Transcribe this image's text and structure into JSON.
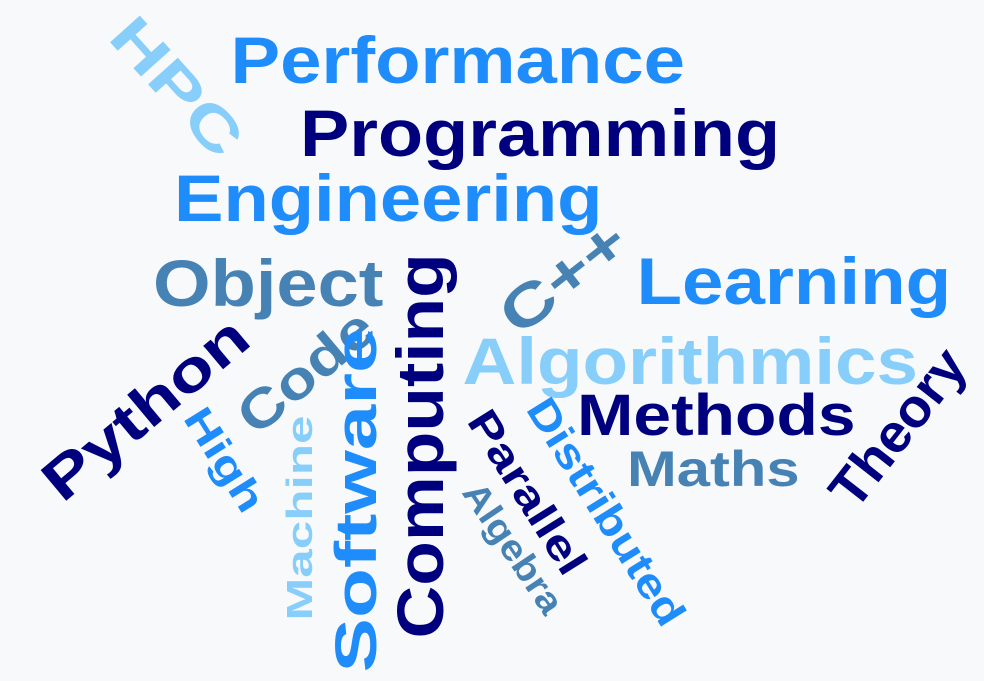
{
  "colors": {
    "navy": "#00007f",
    "dodger_blue": "#1e8cfa",
    "steel_blue": "#4682b4",
    "light_sky_blue": "#87cefa",
    "background": "#f7f9fb"
  },
  "words": [
    {
      "text": "Performance",
      "color": "dodger_blue"
    },
    {
      "text": "HPC",
      "color": "light_sky_blue"
    },
    {
      "text": "Programming",
      "color": "navy"
    },
    {
      "text": "Engineering",
      "color": "dodger_blue"
    },
    {
      "text": "Object",
      "color": "steel_blue"
    },
    {
      "text": "C++",
      "color": "steel_blue"
    },
    {
      "text": "Learning",
      "color": "dodger_blue"
    },
    {
      "text": "Algorithmics",
      "color": "light_sky_blue"
    },
    {
      "text": "Methods",
      "color": "navy"
    },
    {
      "text": "Theory",
      "color": "navy"
    },
    {
      "text": "Maths",
      "color": "steel_blue"
    },
    {
      "text": "Python",
      "color": "navy"
    },
    {
      "text": "Code",
      "color": "steel_blue"
    },
    {
      "text": "High",
      "color": "dodger_blue"
    },
    {
      "text": "Machine",
      "color": "light_sky_blue"
    },
    {
      "text": "Software",
      "color": "dodger_blue"
    },
    {
      "text": "Computing",
      "color": "navy"
    },
    {
      "text": "Parallel",
      "color": "navy"
    },
    {
      "text": "Distributed",
      "color": "dodger_blue"
    },
    {
      "text": "Algebra",
      "color": "steel_blue"
    }
  ]
}
